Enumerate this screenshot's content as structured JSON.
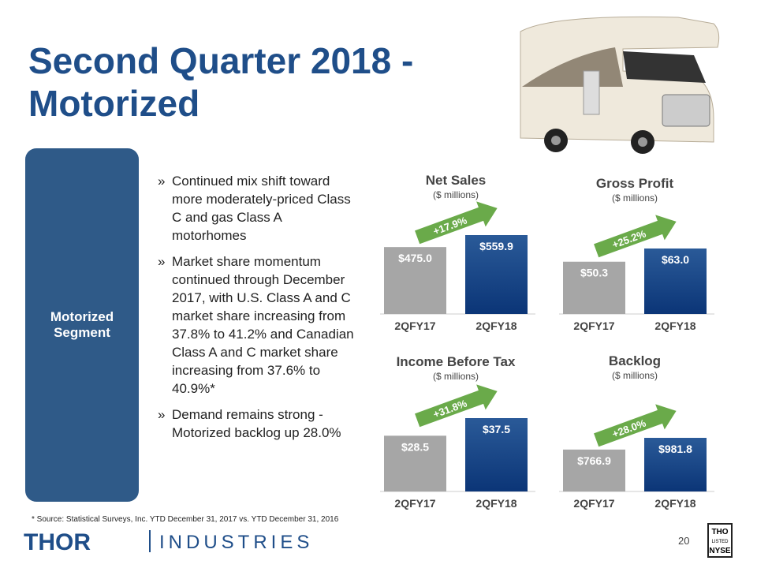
{
  "title": "Second Quarter 2018 - Motorized",
  "segment_label": "Motorized Segment",
  "bullets": [
    "Continued mix shift toward more moderately-priced Class C and gas Class A motorhomes",
    "Market share momentum continued through December 2017, with U.S. Class A and C market share increasing from 37.8% to 41.2% and Canadian Class A and C market share increasing from 37.6% to 40.9%*",
    "Demand remains strong - Motorized backlog up 28.0%"
  ],
  "footnote": "* Source: Statistical Surveys, Inc. YTD December 31, 2017 vs. YTD December 31, 2016",
  "page_number": "20",
  "logo": {
    "brand": "THOR",
    "division": "INDUSTRIES"
  },
  "badge": [
    "THO",
    "LISTED",
    "NYSE"
  ],
  "chart_data": [
    {
      "type": "bar",
      "title": "Net Sales",
      "subtitle": "($ millions)",
      "categories": [
        "2QFY17",
        "2QFY18"
      ],
      "values": [
        475.0,
        559.9
      ],
      "value_labels": [
        "$475.0",
        "$559.9"
      ],
      "colors": [
        "#a6a6a6",
        "#1c4a86"
      ],
      "annotation": "+17.9%"
    },
    {
      "type": "bar",
      "title": "Gross Profit",
      "subtitle": "($ millions)",
      "categories": [
        "2QFY17",
        "2QFY18"
      ],
      "values": [
        50.3,
        63.0
      ],
      "value_labels": [
        "$50.3",
        "$63.0"
      ],
      "colors": [
        "#a6a6a6",
        "#1c4a86"
      ],
      "annotation": "+25.2%"
    },
    {
      "type": "bar",
      "title": "Income Before Tax",
      "subtitle": "($ millions)",
      "categories": [
        "2QFY17",
        "2QFY18"
      ],
      "values": [
        28.5,
        37.5
      ],
      "value_labels": [
        "$28.5",
        "$37.5"
      ],
      "colors": [
        "#a6a6a6",
        "#1c4a86"
      ],
      "annotation": "+31.8%"
    },
    {
      "type": "bar",
      "title": "Backlog",
      "subtitle": "($ millions)",
      "categories": [
        "2QFY17",
        "2QFY18"
      ],
      "values": [
        766.9,
        981.8
      ],
      "value_labels": [
        "$766.9",
        "$981.8"
      ],
      "colors": [
        "#a6a6a6",
        "#1c4a86"
      ],
      "annotation": "+28.0%"
    }
  ]
}
